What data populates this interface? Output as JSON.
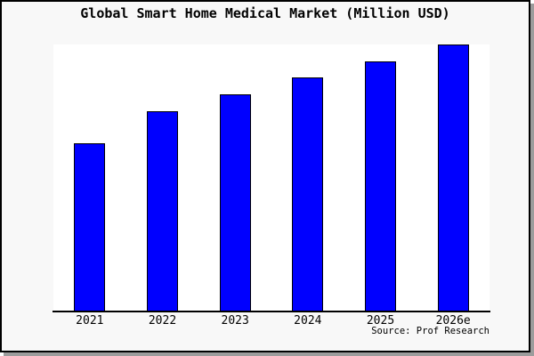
{
  "figure": {
    "title": "Global Smart Home Medical Market (Million USD)",
    "source_credit": "Source: Prof Research",
    "background_color": "#f8f8f8",
    "plot_background_color": "#ffffff",
    "border_color": "#000000",
    "shadow_color": "#9c9c9c",
    "text_color": "#000000"
  },
  "chart_data": {
    "type": "bar",
    "title": "Global Smart Home Medical Market (Million USD)",
    "categories": [
      "2021",
      "2022",
      "2023",
      "2024",
      "2025",
      "2026e"
    ],
    "values": [
      189,
      225,
      244,
      263,
      281,
      300
    ],
    "xlabel": "",
    "ylabel": "",
    "ylim": [
      0,
      300
    ],
    "y_axis_ticks_visible": false,
    "grid": false,
    "legend": false,
    "bar_color": "#0000ff",
    "bar_edge_color": "#000000",
    "annotation": "Source: Prof Research"
  }
}
